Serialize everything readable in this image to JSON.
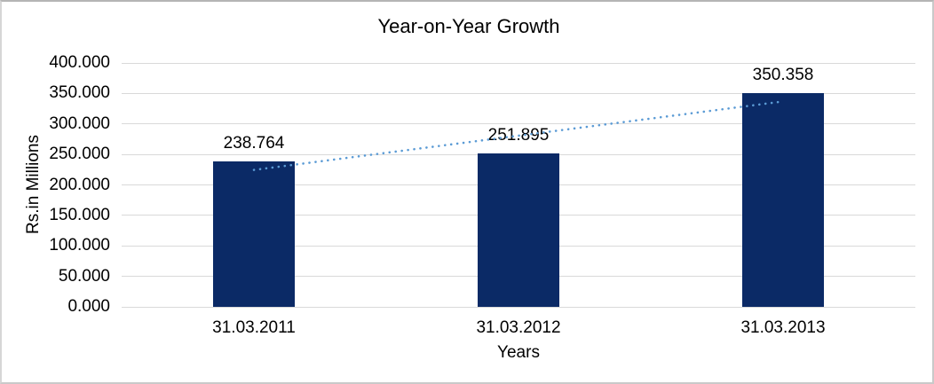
{
  "window": {
    "background": "#ffffff",
    "border_color": "#c9c9c9"
  },
  "chart_data": {
    "type": "bar",
    "title": "Year-on-Year Growth",
    "xlabel": "Years",
    "ylabel": "Rs.in Millions",
    "categories": [
      "31.03.2011",
      "31.03.2012",
      "31.03.2013"
    ],
    "values": [
      238.764,
      251.895,
      350.358
    ],
    "data_labels": [
      "238.764",
      "251.895",
      "350.358"
    ],
    "ylim": [
      0,
      400
    ],
    "ytick_step": 50,
    "ytick_labels": [
      "0.000",
      "50.000",
      "100.000",
      "150.000",
      "200.000",
      "250.000",
      "300.000",
      "350.000",
      "400.000"
    ],
    "grid": true,
    "legend": "none",
    "bar_color": "#0b2a66",
    "gridline_color": "#d9d9d9",
    "text_color": "#000000",
    "trendline": {
      "type": "linear",
      "style": "dotted",
      "color": "#5b9bd5"
    }
  }
}
